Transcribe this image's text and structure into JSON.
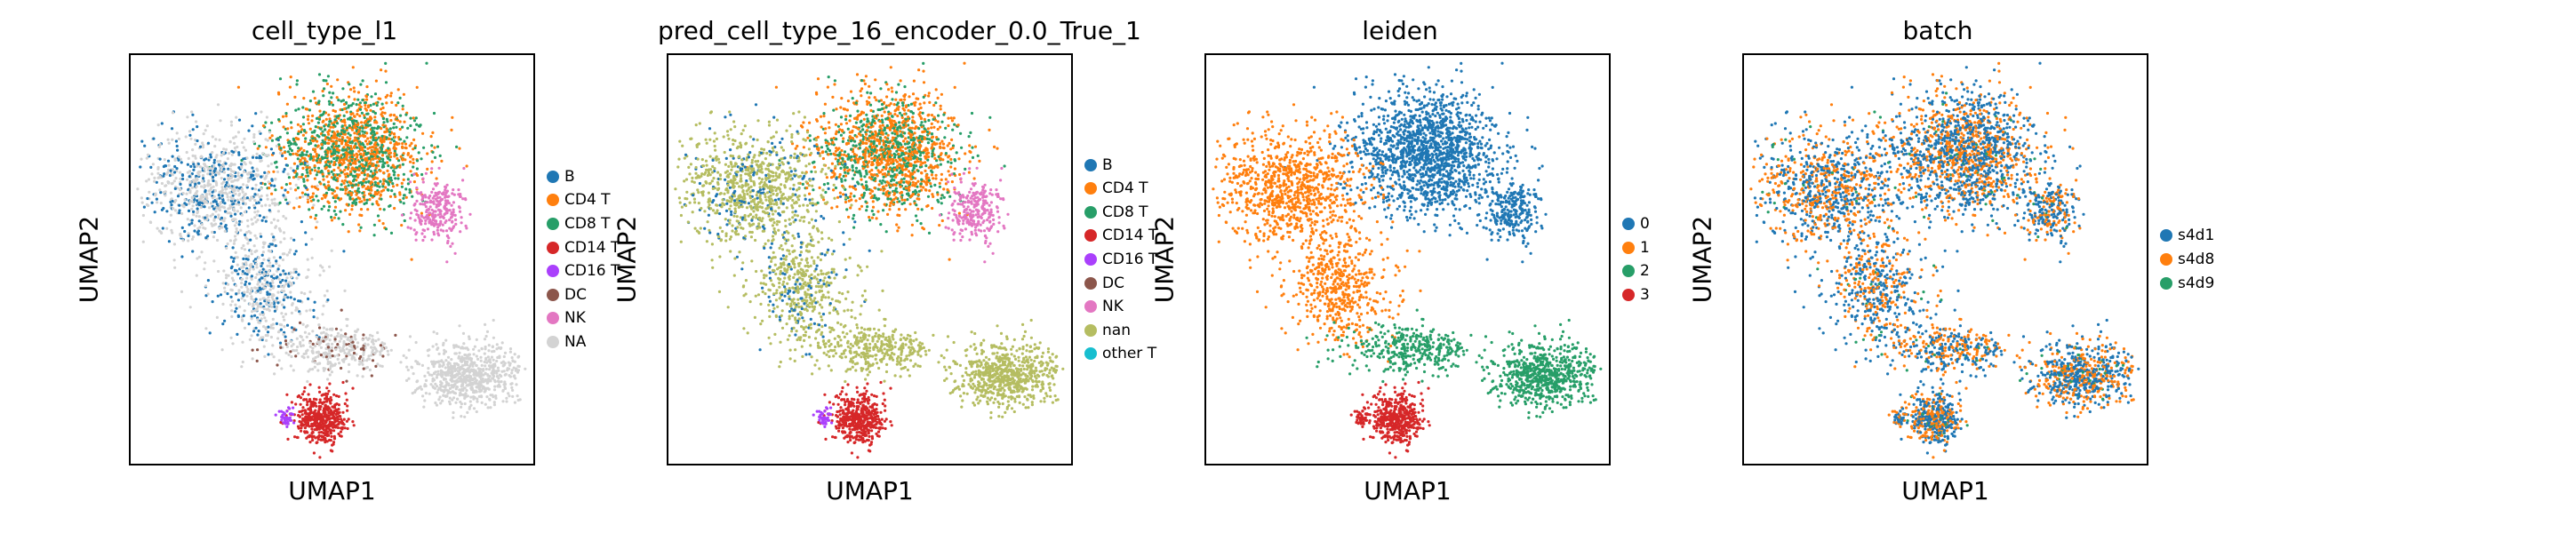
{
  "chart_data": [
    {
      "type": "scatter",
      "title": "cell_type_l1",
      "xlabel": "UMAP1",
      "ylabel": "UMAP2",
      "grid": false,
      "legend_position": "right",
      "legend": [
        {
          "label": "B",
          "color": "#1f77b4"
        },
        {
          "label": "CD4 T",
          "color": "#ff7f0e"
        },
        {
          "label": "CD8 T",
          "color": "#279e68"
        },
        {
          "label": "CD14 T",
          "color": "#d62728"
        },
        {
          "label": "CD16 T",
          "color": "#aa40fc"
        },
        {
          "label": "DC",
          "color": "#8c564b"
        },
        {
          "label": "NK",
          "color": "#e377c2"
        },
        {
          "label": "NA",
          "color": "#d3d3d3"
        }
      ]
    },
    {
      "type": "scatter",
      "title": "pred_cell_type_16_encoder_0.0_True_1",
      "xlabel": "UMAP1",
      "ylabel": "UMAP2",
      "grid": false,
      "legend_position": "right",
      "legend": [
        {
          "label": "B",
          "color": "#1f77b4"
        },
        {
          "label": "CD4 T",
          "color": "#ff7f0e"
        },
        {
          "label": "CD8 T",
          "color": "#279e68"
        },
        {
          "label": "CD14 T",
          "color": "#d62728"
        },
        {
          "label": "CD16 T",
          "color": "#aa40fc"
        },
        {
          "label": "DC",
          "color": "#8c564b"
        },
        {
          "label": "NK",
          "color": "#e377c2"
        },
        {
          "label": "nan",
          "color": "#b5bd61"
        },
        {
          "label": "other T",
          "color": "#17becf"
        }
      ]
    },
    {
      "type": "scatter",
      "title": "leiden",
      "xlabel": "UMAP1",
      "ylabel": "UMAP2",
      "grid": false,
      "legend_position": "right",
      "legend": [
        {
          "label": "0",
          "color": "#1f77b4"
        },
        {
          "label": "1",
          "color": "#ff7f0e"
        },
        {
          "label": "2",
          "color": "#279e68"
        },
        {
          "label": "3",
          "color": "#d62728"
        }
      ]
    },
    {
      "type": "scatter",
      "title": "batch",
      "xlabel": "UMAP1",
      "ylabel": "UMAP2",
      "grid": false,
      "legend_position": "right",
      "legend": [
        {
          "label": "s4d1",
          "color": "#1f77b4"
        },
        {
          "label": "s4d8",
          "color": "#ff7f0e"
        },
        {
          "label": "s4d9",
          "color": "#279e68"
        }
      ]
    }
  ]
}
